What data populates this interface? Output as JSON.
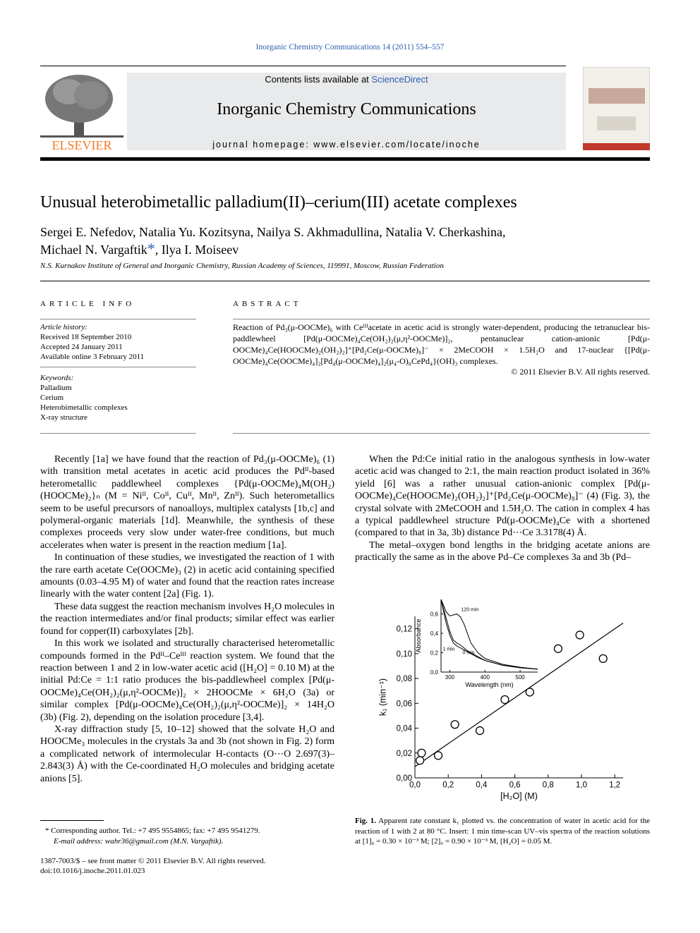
{
  "header": {
    "citation": "Inorganic Chemistry Communications 14 (2011) 554–557",
    "contents_prefix": "Contents lists available at ",
    "contents_link": "ScienceDirect",
    "journal": "Inorganic Chemistry Communications",
    "homepage": "journal homepage: www.elsevier.com/locate/inoche",
    "publisher": "ELSEVIER"
  },
  "title": "Unusual heterobimetallic palladium(II)–cerium(III) acetate complexes",
  "authors_line1": "Sergei E. Nefedov, Natalia Yu. Kozitsyna, Nailya S. Akhmadullina, Natalia V. Cherkashina,",
  "authors_line2": [
    "Michael N. Vargaftik",
    "*",
    ", Ilya I. Moiseev"
  ],
  "affiliation": "N.S. Kurnakov Institute of General and Inorganic Chemistry, Russian Academy of Sciences, 119991, Moscow, Russian Federation",
  "article_info": {
    "heading": "ARTICLE INFO",
    "history_heading": "Article history:",
    "history": [
      "Received 18 September 2010",
      "Accepted 24 January 2011",
      "Available online 3 February 2011"
    ],
    "keywords_heading": "Keywords:",
    "keywords": [
      "Palladium",
      "Cerium",
      "Heterobimetallic complexes",
      "X-ray structure"
    ]
  },
  "abstract": {
    "heading": "ABSTRACT",
    "text": "Reaction of Pd₃(μ-OOCMe)₆ with Ceᴵᴵᴵacetate in acetic acid is strongly water-dependent, producing the tetranuclear bis-paddlewheel [Pd(μ-OOCMe)₄Ce(OH₂)₂(μ,η²-OOCMe)]₂, pentanuclear cation-anionic [Pd(μ-OOCMe)₄Ce(HOOCMe)₂(OH₂)₂]⁺[Pd₂Ce(μ-OOCMe)₈]⁻ × 2MeCOOH × 1.5H₂O and 17-nuclear {[Pd(μ-OOCMe)₄Ce(OOCMe)₄]₂[Pd₄(μ-OOCMe)₄]₂(μ₄-O)₈CePd₄}(OH)₃ complexes.",
    "copyright": "© 2011 Elsevier B.V. All rights reserved."
  },
  "body": {
    "left": [
      "Recently [1a] we have found that the reaction of Pd₃(μ-OOCMe)₆ (1) with transition metal acetates in acetic acid produces the Pdᴵᴵ-based heterometallic paddlewheel complexes {Pd(μ-OOCMe)₄M(OH₂)(HOOCMe)₂}ₙ (M = Niᴵᴵ, Coᴵᴵ, Cuᴵᴵ, Mnᴵᴵ, Znᴵᴵ). Such heterometallics seem to be useful precursors of nanoalloys, multiplex catalysts [1b,c] and polymeral-organic materials [1d]. Meanwhile, the synthesis of these complexes proceeds very slow under water-free conditions, but much accelerates when water is present in the reaction medium [1a].",
      "In continuation of these studies, we investigated the reaction of 1 with the rare earth acetate Ce(OOCMe)₃ (2) in acetic acid containing specified amounts (0.03–4.95 M) of water and found that the reaction rates increase linearly with the water content [2a] (Fig. 1).",
      "These data suggest the reaction mechanism involves H₂O molecules in the reaction intermediates and/or final products; similar effect was earlier found for copper(II) carboxylates [2b].",
      "In this work we isolated and structurally characterised heterometallic compounds formed in the Pdᴵᴵ–Ceᴵᴵᴵ reaction system. We found that the reaction between 1 and 2 in low-water acetic acid ([H₂O] = 0.10 M) at the initial Pd:Ce = 1:1 ratio produces the bis-paddlewheel complex [Pd(μ-OOCMe)₄Ce(OH₂)₂(μ,η²-OOCMe)]₂ × 2HOOCMe × 6H₂O (3a) or similar complex [Pd(μ-OOCMe)₄Ce(OH₂)₂(μ,η²-OOCMe)]₂ × 14H₂O (3b) (Fig. 2), depending on the isolation procedure [3,4].",
      "X-ray diffraction study [5, 10–12] showed that the solvate H₂O and HOOCMe₃ molecules in the crystals 3a and 3b (not shown in Fig. 2) form a complicated network of intermolecular H-contacts (O⋯O 2.697(3)–2.843(3) Å) with the Ce-coordinated H₂O molecules and bridging acetate anions [5]."
    ],
    "right": [
      "When the Pd:Ce initial ratio in the analogous synthesis in low-water acetic acid was changed to 2:1, the main reaction product isolated in 36% yield [6] was a rather unusual cation-anionic complex [Pd(μ-OOCMe)₄Ce(HOOCMe)₂(OH₂)₂]⁺[Pd₂Ce(μ-OOCMe)₈]⁻ (4) (Fig. 3), the crystal solvate with 2MeCOOH and 1.5H₂O. The cation in complex 4 has a typical paddlewheel structure Pd(μ-OOCMe)₄Ce with a shortened (compared to that in 3a, 3b) distance Pd⋯Ce 3.3178(4) Å.",
      "The metal–oxygen bond lengths in the bridging acetate anions are practically the same as in the above Pd–Ce complexes 3a and 3b (Pd–"
    ]
  },
  "figure": {
    "label": "Fig. 1.",
    "caption": "Apparent rate constant k₁ plotted vs. the concentration of water in acetic acid for the reaction of 1 with 2 at 80 °C. Insert: 1 min time-scan UV–vis spectra of the reaction solutions at [1]₀ = 0.30 × 10⁻³ M; [2]₀ = 0.90 × 10⁻³ M, [H₂O] = 0.05 M."
  },
  "footnotes": {
    "corresponding": "* Corresponding author. Tel.: +7 495 9554865; fax: +7 495 9541279.",
    "email": "E-mail address: wahr36@gmail.com (M.N. Vargaftik).",
    "front_matter": "1387-7003/$ – see front matter © 2011 Elsevier B.V. All rights reserved.",
    "doi": "doi:10.1016/j.inoche.2011.01.023"
  },
  "chart_data": [
    {
      "type": "scatter",
      "x_label": "[H₂O] (M)",
      "y_label": "k₁ (min⁻¹)",
      "x": [
        0.03,
        0.04,
        0.14,
        0.24,
        0.39,
        0.54,
        0.69,
        0.86,
        0.99,
        1.13
      ],
      "values": [
        0.014,
        0.02,
        0.018,
        0.043,
        0.038,
        0.063,
        0.069,
        0.104,
        0.115,
        0.096
      ],
      "fit": {
        "x": [
          0,
          1.25
        ],
        "values": [
          0.009,
          0.1246
        ]
      },
      "xlim": [
        0,
        1.25
      ],
      "ylim": [
        0,
        0.13
      ],
      "xticks": [
        {
          "value": 0,
          "label": "0,0"
        },
        {
          "value": 0.2,
          "label": "0,2"
        },
        {
          "value": 0.4,
          "label": "0,4"
        },
        {
          "value": 0.6,
          "label": "0,6"
        },
        {
          "value": 0.8,
          "label": "0,8"
        },
        {
          "value": 1,
          "label": "1,0"
        },
        {
          "value": 1.2,
          "label": "1,2"
        }
      ],
      "yticks": [
        {
          "value": 0,
          "label": "0,00"
        },
        {
          "value": 0.02,
          "label": "0,02"
        },
        {
          "value": 0.04,
          "label": "0,04"
        },
        {
          "value": 0.06,
          "label": "0,06"
        },
        {
          "value": 0.08,
          "label": "0,08"
        },
        {
          "value": 0.1,
          "label": "0,10"
        },
        {
          "value": 0.12,
          "label": "0,12"
        }
      ],
      "color": "#000000"
    },
    {
      "type": "line",
      "x_label": "Wavelength (nm)",
      "y_label": "Absorbance",
      "x": [
        275,
        290,
        300,
        310,
        320,
        330,
        340,
        350,
        360,
        380,
        400,
        450,
        500,
        550
      ],
      "series": [
        {
          "name": "120 min",
          "color": "#000000",
          "values": [
            0.75,
            0.62,
            0.58,
            0.59,
            0.6,
            0.57,
            0.5,
            0.4,
            0.3,
            0.2,
            0.14,
            0.08,
            0.05,
            0.03
          ]
        },
        {
          "name": "1 min",
          "color": "#000000",
          "values": [
            0.75,
            0.55,
            0.42,
            0.33,
            0.3,
            0.28,
            0.25,
            0.22,
            0.2,
            0.16,
            0.12,
            0.07,
            0.045,
            0.03
          ]
        },
        {
          "name": "0 min",
          "color": "#000000",
          "values": [
            0.75,
            0.5,
            0.38,
            0.3,
            0.27,
            0.25,
            0.23,
            0.21,
            0.19,
            0.15,
            0.12,
            0.07,
            0.045,
            0.03
          ]
        }
      ],
      "xlim": [
        275,
        550
      ],
      "ylim": [
        0,
        0.75
      ],
      "xticks": [
        300,
        400,
        500
      ],
      "yticks": [
        {
          "value": 0,
          "label": "0,0"
        },
        {
          "value": 0.2,
          "label": "0,2"
        },
        {
          "value": 0.4,
          "label": "0,4"
        },
        {
          "value": 0.6,
          "label": "0,6"
        }
      ]
    }
  ]
}
